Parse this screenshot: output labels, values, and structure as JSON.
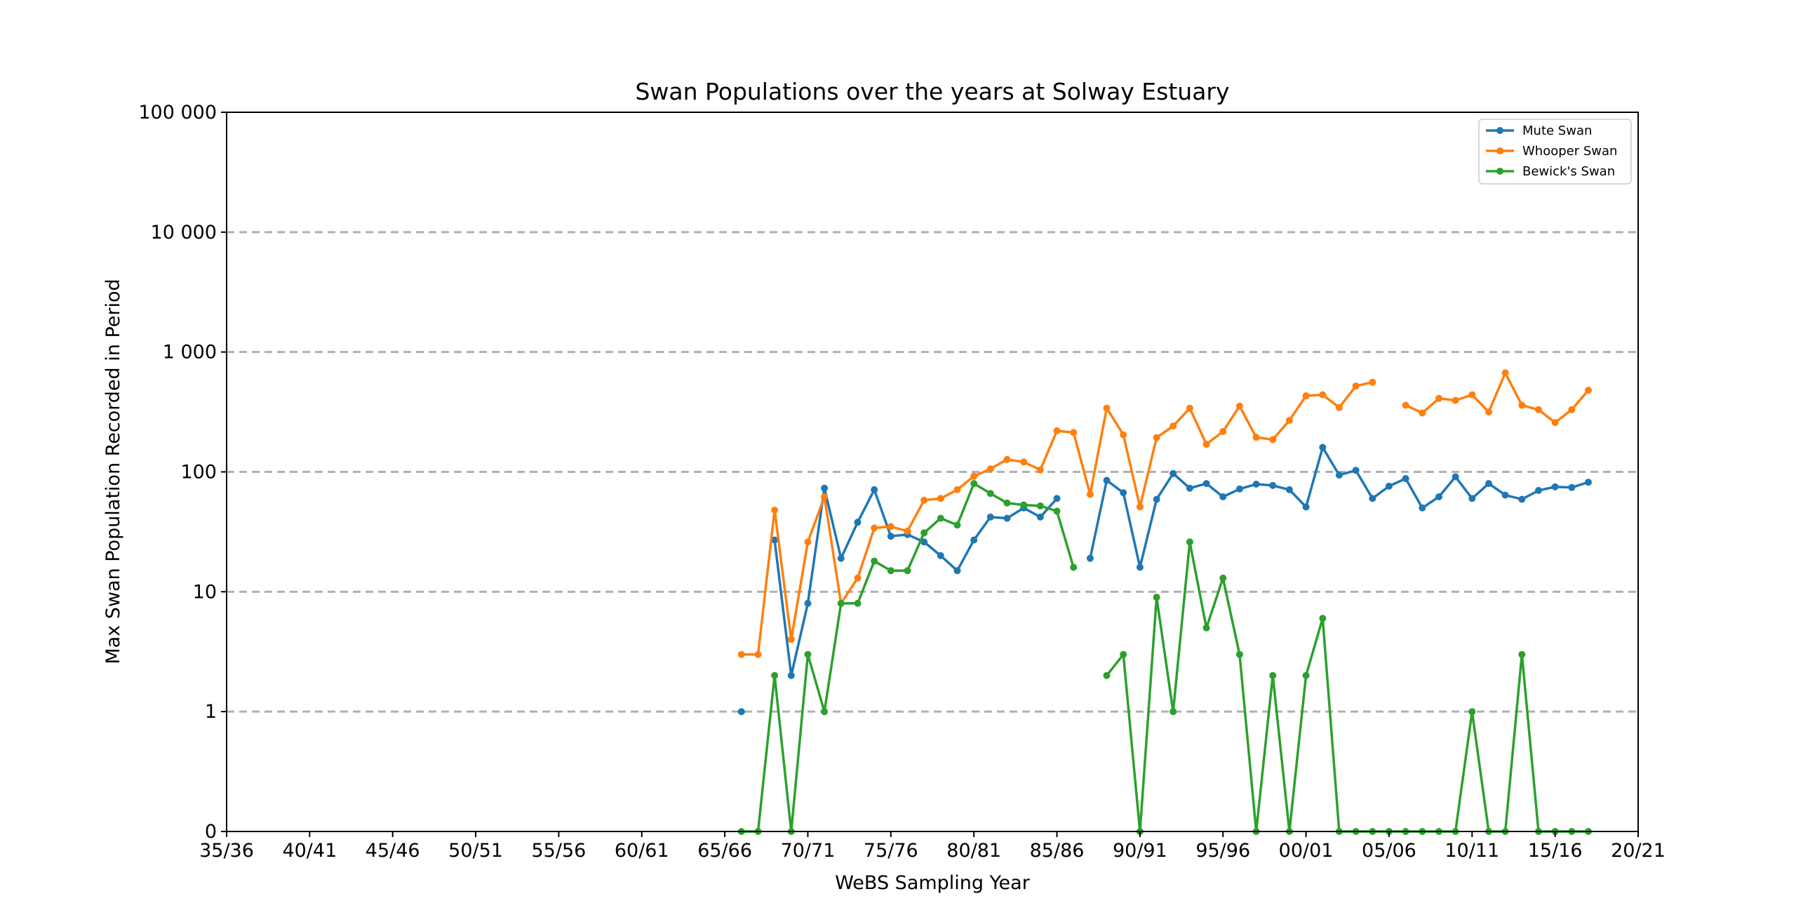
{
  "chart_data": {
    "type": "line",
    "title": "Swan Populations over the years at Solway Estuary",
    "xlabel": "WeBS Sampling Year",
    "ylabel": "Max Swan Population Recorded in Period",
    "y_scale": "symlog",
    "xlim": [
      1935,
      2020
    ],
    "ylim": [
      0,
      100000
    ],
    "x_tick_labels": [
      "35/36",
      "40/41",
      "45/46",
      "50/51",
      "55/56",
      "60/61",
      "65/66",
      "70/71",
      "75/76",
      "80/81",
      "85/86",
      "90/91",
      "95/96",
      "00/01",
      "05/06",
      "10/11",
      "15/16",
      "20/21"
    ],
    "y_tick_labels": [
      "0",
      "1",
      "10",
      "100",
      "1 000",
      "10 000",
      "100 000"
    ],
    "y_tick_values": [
      0,
      1,
      10,
      100,
      1000,
      10000,
      100000
    ],
    "grid": "horizontal dashed",
    "legend_position": "top-right",
    "x": [
      1966,
      1967,
      1968,
      1969,
      1970,
      1971,
      1972,
      1973,
      1974,
      1975,
      1976,
      1977,
      1978,
      1979,
      1980,
      1981,
      1982,
      1983,
      1984,
      1985,
      1986,
      1987,
      1988,
      1989,
      1990,
      1991,
      1992,
      1993,
      1994,
      1995,
      1996,
      1997,
      1998,
      1999,
      2000,
      2001,
      2002,
      2003,
      2004,
      2005,
      2006,
      2007,
      2008,
      2009,
      2010,
      2011,
      2012,
      2013,
      2014,
      2015,
      2016,
      2017
    ],
    "series": [
      {
        "name": "Mute Swan",
        "color": "#1f77b4",
        "values": [
          1,
          null,
          27,
          2,
          8,
          73,
          19,
          38,
          71,
          29,
          30,
          26,
          20,
          15,
          27,
          42,
          41,
          50,
          42,
          60,
          null,
          19,
          85,
          67,
          16,
          59,
          97,
          73,
          80,
          62,
          72,
          79,
          77,
          71,
          51,
          160,
          94,
          103,
          60,
          76,
          88,
          50,
          62,
          91,
          60,
          80,
          64,
          59,
          70,
          75,
          74,
          82
        ]
      },
      {
        "name": "Whooper Swan",
        "color": "#ff7f0e",
        "values": [
          3,
          3,
          48,
          4,
          26,
          62,
          8,
          13,
          34,
          35,
          32,
          58,
          60,
          71,
          92,
          106,
          127,
          121,
          104,
          220,
          213,
          65,
          340,
          204,
          51,
          193,
          241,
          340,
          170,
          217,
          354,
          194,
          186,
          269,
          431,
          440,
          344,
          520,
          560,
          null,
          360,
          310,
          410,
          395,
          440,
          316,
          670,
          360,
          330,
          258,
          330,
          480
        ]
      },
      {
        "name": "Bewick's Swan",
        "color": "#2ca02c",
        "values": [
          0,
          0,
          2,
          0,
          3,
          1,
          8,
          8,
          18,
          15,
          15,
          31,
          41,
          36,
          80,
          66,
          55,
          53,
          52,
          47,
          16,
          null,
          2,
          3,
          0,
          9,
          1,
          26,
          5,
          13,
          3,
          0,
          2,
          0,
          2,
          6,
          0,
          0,
          0,
          0,
          0,
          0,
          0,
          0,
          1,
          0,
          0,
          3,
          0,
          0,
          0,
          0
        ]
      }
    ]
  }
}
